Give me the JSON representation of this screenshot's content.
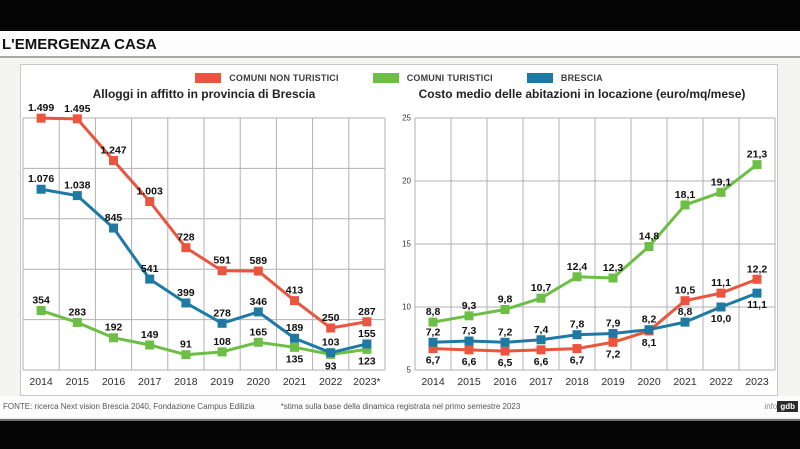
{
  "page": {
    "kicker_title": "L'EMERGENZA CASA",
    "source_note": "FONTE: ricerca Next vision Brescia 2040, Fondazione Campus Edilizia",
    "footnote": "*stima sulla base della dinamica registrata nel primo semestre 2023",
    "credit_prefix": "info",
    "credit_logo": "gdb"
  },
  "colors": {
    "non_turistici_red": "#e9553e",
    "turistici_green": "#6cbe45",
    "brescia_blue": "#1e7aa3",
    "grid_gray": "#b1b1b1"
  },
  "legend": [
    {
      "label": "COMUNI NON TURISTICI",
      "color": "#e9553e"
    },
    {
      "label": "COMUNI TURISTICI",
      "color": "#6cbe45"
    },
    {
      "label": "BRESCIA",
      "color": "#1e7aa3"
    }
  ],
  "chart_data": [
    {
      "type": "line",
      "title": "Alloggi in affitto in provincia di Brescia",
      "categories": [
        "2014",
        "2015",
        "2016",
        "2017",
        "2018",
        "2019",
        "2020",
        "2021",
        "2022",
        "2023*"
      ],
      "ylim": [
        0,
        1500
      ],
      "ystep": 300,
      "y_axis_labels": false,
      "grid": true,
      "legend_position": "top-center",
      "series": [
        {
          "name": "COMUNI NON TURISTICI",
          "color": "#e9553e",
          "values": [
            1499,
            1495,
            1247,
            1003,
            728,
            591,
            589,
            413,
            250,
            287
          ],
          "labels": [
            "1.499",
            "1.495",
            "1.247",
            "1.003",
            "728",
            "591",
            "589",
            "413",
            "250",
            "287"
          ],
          "label_pos": [
            "a",
            "a",
            "a",
            "a",
            "a",
            "a",
            "a",
            "a",
            "a",
            "a"
          ]
        },
        {
          "name": "COMUNI TURISTICI",
          "color": "#6cbe45",
          "values": [
            354,
            283,
            192,
            149,
            91,
            108,
            165,
            135,
            93,
            123
          ],
          "labels": [
            "354",
            "283",
            "192",
            "149",
            "91",
            "108",
            "165",
            "135",
            "93",
            "123"
          ],
          "label_pos": [
            "a",
            "a",
            "a",
            "a",
            "a",
            "a",
            "a",
            "b",
            "b",
            "b"
          ]
        },
        {
          "name": "BRESCIA",
          "color": "#1e7aa3",
          "values": [
            1076,
            1038,
            845,
            541,
            399,
            278,
            346,
            189,
            103,
            155
          ],
          "labels": [
            "1.076",
            "1.038",
            "845",
            "541",
            "399",
            "278",
            "346",
            "189",
            "103",
            "155"
          ],
          "label_pos": [
            "a",
            "a",
            "a",
            "a",
            "a",
            "a",
            "a",
            "a",
            "a",
            "a"
          ]
        }
      ]
    },
    {
      "type": "line",
      "title": "Costo medio delle abitazioni in locazione (euro/mq/mese)",
      "categories": [
        "2014",
        "2015",
        "2016",
        "2017",
        "2018",
        "2019",
        "2020",
        "2021",
        "2022",
        "2023"
      ],
      "ylim": [
        5,
        25
      ],
      "ystep": 5,
      "y_axis_labels": true,
      "grid": true,
      "legend_position": "top-center",
      "series": [
        {
          "name": "COMUNI TURISTICI",
          "color": "#6cbe45",
          "values": [
            8.8,
            9.3,
            9.8,
            10.7,
            12.4,
            12.3,
            14.8,
            18.1,
            19.1,
            21.3
          ],
          "labels": [
            "8,8",
            "9,3",
            "9,8",
            "10,7",
            "12,4",
            "12,3",
            "14,8",
            "18,1",
            "19,1",
            "21,3"
          ],
          "label_pos": [
            "a",
            "a",
            "a",
            "a",
            "a",
            "a",
            "a",
            "a",
            "a",
            "a"
          ]
        },
        {
          "name": "COMUNI NON TURISTICI",
          "color": "#e9553e",
          "values": [
            6.7,
            6.6,
            6.5,
            6.6,
            6.7,
            7.2,
            8.1,
            10.5,
            11.1,
            12.2
          ],
          "labels": [
            "6,7",
            "6,6",
            "6,5",
            "6,6",
            "6,7",
            "7,2",
            "8,1",
            "10,5",
            "11,1",
            "12,2"
          ],
          "label_pos": [
            "b",
            "b",
            "b",
            "b",
            "b",
            "b",
            "b",
            "a",
            "a",
            "a"
          ]
        },
        {
          "name": "BRESCIA",
          "color": "#1e7aa3",
          "values": [
            7.2,
            7.3,
            7.2,
            7.4,
            7.8,
            7.9,
            8.2,
            8.8,
            10.0,
            11.1
          ],
          "labels": [
            "7,2",
            "7,3",
            "7,2",
            "7,4",
            "7,8",
            "7,9",
            "8,2",
            "8,8",
            "10,0",
            "11,1"
          ],
          "label_pos": [
            "a",
            "a",
            "a",
            "a",
            "a",
            "a",
            "a",
            "a",
            "b",
            "b"
          ]
        }
      ]
    }
  ]
}
